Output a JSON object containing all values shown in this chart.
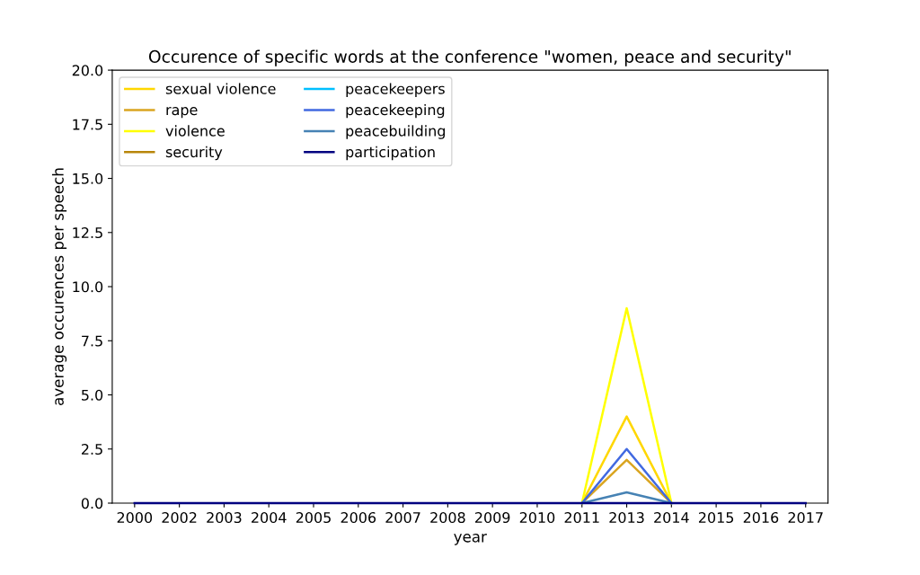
{
  "chart_data": {
    "type": "line",
    "title": "Occurence of specific words at the conference \"women, peace and security\"",
    "xlabel": "year",
    "ylabel": "average occurences per speech",
    "categories": [
      "2000",
      "2002",
      "2003",
      "2004",
      "2005",
      "2006",
      "2007",
      "2008",
      "2009",
      "2010",
      "2011",
      "2013",
      "2014",
      "2015",
      "2016",
      "2017"
    ],
    "series": [
      {
        "name": "sexual violence",
        "color": "#ffd700",
        "values": [
          null,
          null,
          null,
          null,
          null,
          null,
          null,
          null,
          null,
          null,
          0,
          4,
          0,
          null,
          null,
          null
        ]
      },
      {
        "name": "rape",
        "color": "#daa520",
        "values": [
          null,
          null,
          null,
          null,
          null,
          null,
          null,
          null,
          null,
          null,
          0,
          2,
          0,
          null,
          null,
          null
        ]
      },
      {
        "name": "violence",
        "color": "#ffff00",
        "values": [
          null,
          null,
          null,
          null,
          null,
          null,
          null,
          null,
          null,
          null,
          0,
          9,
          0,
          null,
          null,
          null
        ]
      },
      {
        "name": "security",
        "color": "#b8860b",
        "values": [
          null,
          null,
          null,
          null,
          null,
          null,
          null,
          null,
          null,
          null,
          null,
          null,
          null,
          null,
          null,
          null
        ]
      },
      {
        "name": "peacekeepers",
        "color": "#00bfff",
        "values": [
          null,
          null,
          null,
          null,
          null,
          null,
          null,
          null,
          null,
          null,
          null,
          null,
          null,
          null,
          null,
          null
        ]
      },
      {
        "name": "peacekeeping",
        "color": "#4169e1",
        "values": [
          null,
          null,
          null,
          null,
          null,
          null,
          null,
          null,
          null,
          null,
          0,
          2.5,
          0,
          null,
          null,
          null
        ]
      },
      {
        "name": "peacebuilding",
        "color": "#4682b4",
        "values": [
          null,
          null,
          null,
          null,
          null,
          null,
          null,
          null,
          null,
          null,
          0,
          0.5,
          0,
          null,
          null,
          null
        ]
      },
      {
        "name": "participation",
        "color": "#000080",
        "values": [
          0,
          0,
          0,
          0,
          0,
          0,
          0,
          0,
          0,
          0,
          0,
          0,
          0,
          0,
          0,
          0
        ]
      }
    ],
    "ylim": [
      0,
      20
    ],
    "yticks": [
      {
        "value": 0,
        "label": "0.0"
      },
      {
        "value": 2.5,
        "label": "2.5"
      },
      {
        "value": 5,
        "label": "5.0"
      },
      {
        "value": 7.5,
        "label": "7.5"
      },
      {
        "value": 10,
        "label": "10.0"
      },
      {
        "value": 12.5,
        "label": "12.5"
      },
      {
        "value": 15,
        "label": "15.0"
      },
      {
        "value": 17.5,
        "label": "17.5"
      },
      {
        "value": 20,
        "label": "20.0"
      }
    ],
    "grid": false,
    "legend": "top left",
    "marker": "none",
    "line_style": "solid"
  }
}
